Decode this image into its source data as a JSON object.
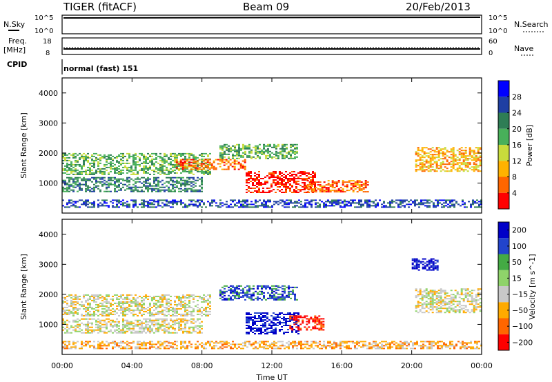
{
  "header": {
    "radar": "TIGER (fitACF)",
    "beam": "Beam 09",
    "date": "20/Feb/2013"
  },
  "status_panels": {
    "nsky_label": "N.Sky",
    "nsky_ticks": [
      "10^5",
      "10^0"
    ],
    "nsearch_label": "N.Search",
    "nsearch_ticks": [
      "10^5",
      "10^0"
    ],
    "freq_label": "Freq.",
    "freq_unit": "[MHz]",
    "freq_ticks": [
      "18",
      "8"
    ],
    "nave_label": "Nave",
    "nave_ticks": [
      "60",
      "0"
    ],
    "cpid_label": "CPID",
    "cpid_text": "normal (fast) 151"
  },
  "colors": {
    "power": [
      "#0000ff",
      "#1f3fa3",
      "#2e7d55",
      "#48b05a",
      "#c8dc3c",
      "#ffb200",
      "#ff6600",
      "#ff0000"
    ],
    "velocity": [
      "#0000c8",
      "#2244cc",
      "#44aa44",
      "#8fd36a",
      "#c8c8c8",
      "#ffaa00",
      "#ff6600",
      "#ff0000"
    ]
  },
  "chart_data": [
    {
      "type": "heatmap",
      "name": "power",
      "ylabel": "Slant Range [km]",
      "xlabel": "Time UT",
      "ylim": [
        0,
        4500
      ],
      "yticks": [
        "1000",
        "2000",
        "3000",
        "4000"
      ],
      "xticks": [
        "00:00",
        "04:00",
        "08:00",
        "12:00",
        "16:00",
        "20:00",
        "00:00"
      ],
      "colorbar": {
        "label": "Power [dB]",
        "ticks": [
          "28",
          "24",
          "20",
          "16",
          "12",
          "8",
          "4"
        ],
        "range": [
          0,
          30
        ]
      },
      "bands": [
        {
          "t0": 0.0,
          "t1": 8.5,
          "r0": 1300,
          "r1": 2000,
          "level": 3
        },
        {
          "t0": 0.0,
          "t1": 8.0,
          "r0": 700,
          "r1": 1200,
          "level": 2
        },
        {
          "t0": 6.5,
          "t1": 10.5,
          "r0": 1450,
          "r1": 1800,
          "level": 6
        },
        {
          "t0": 10.5,
          "t1": 14.5,
          "r0": 700,
          "r1": 1400,
          "level": 7
        },
        {
          "t0": 14.0,
          "t1": 17.5,
          "r0": 700,
          "r1": 1100,
          "level": 6
        },
        {
          "t0": 9.0,
          "t1": 13.5,
          "r0": 1800,
          "r1": 2300,
          "level": 3
        },
        {
          "t0": 20.2,
          "t1": 23.9,
          "r0": 1400,
          "r1": 2200,
          "level": 5
        },
        {
          "t0": 0.0,
          "t1": 24.0,
          "r0": 200,
          "r1": 450,
          "level": 1
        }
      ]
    },
    {
      "type": "heatmap",
      "name": "velocity",
      "ylabel": "Slant Range [km]",
      "xlabel": "Time UT",
      "ylim": [
        0,
        4500
      ],
      "yticks": [
        "1000",
        "2000",
        "3000",
        "4000"
      ],
      "xticks": [
        "00:00",
        "04:00",
        "08:00",
        "12:00",
        "16:00",
        "20:00",
        "00:00"
      ],
      "colorbar": {
        "label": "Velocity [m s^-1]",
        "ticks": [
          "200",
          "100",
          "50",
          "15",
          "−15",
          "−50",
          "−100",
          "−200"
        ],
        "range": [
          -250,
          250
        ]
      },
      "bands": [
        {
          "t0": 0.0,
          "t1": 8.5,
          "r0": 1300,
          "r1": 2000,
          "level": 4
        },
        {
          "t0": 0.0,
          "t1": 8.0,
          "r0": 700,
          "r1": 1200,
          "level": 4
        },
        {
          "t0": 10.5,
          "t1": 13.5,
          "r0": 700,
          "r1": 1400,
          "level": 0
        },
        {
          "t0": 13.0,
          "t1": 15.0,
          "r0": 800,
          "r1": 1300,
          "level": 7
        },
        {
          "t0": 9.0,
          "t1": 13.5,
          "r0": 1800,
          "r1": 2300,
          "level": 1
        },
        {
          "t0": 20.2,
          "t1": 23.9,
          "r0": 1400,
          "r1": 2200,
          "level": 4
        },
        {
          "t0": 20.0,
          "t1": 21.5,
          "r0": 2800,
          "r1": 3200,
          "level": 0
        },
        {
          "t0": 0.0,
          "t1": 24.0,
          "r0": 200,
          "r1": 450,
          "level": 5
        }
      ]
    }
  ]
}
